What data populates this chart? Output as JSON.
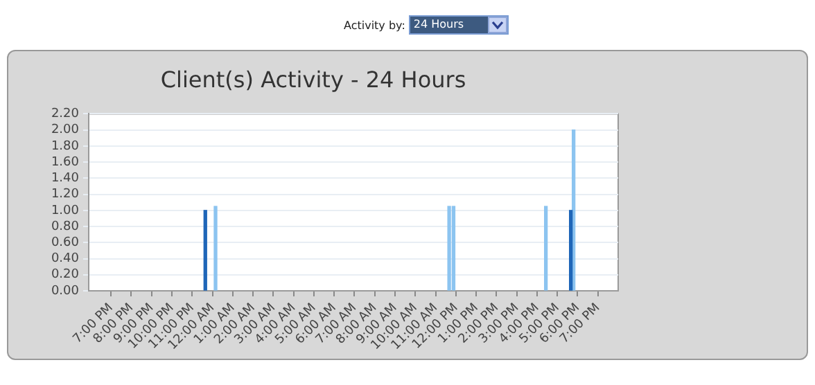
{
  "chart_data": {
    "type": "bar",
    "title": "Client(s) Activity - 24 Hours",
    "annotations": [
      "Activity by:",
      "24 Hours"
    ],
    "grid": "y",
    "legend": false,
    "xlim": [
      "--01-01T17:54",
      "--01-02T20:00"
    ],
    "xticks": [
      {
        "value": "--01-01T19:00",
        "label": "7:00 PM"
      },
      {
        "value": "--01-01T20:00",
        "label": "8:00 PM"
      },
      {
        "value": "--01-01T21:00",
        "label": "9:00 PM"
      },
      {
        "value": "--01-01T22:00",
        "label": "10:00 PM"
      },
      {
        "value": "--01-01T23:00",
        "label": "11:00 PM"
      },
      {
        "value": "--01-02T00:00",
        "label": "12:00 AM"
      },
      {
        "value": "--01-02T01:00",
        "label": "1:00 AM"
      },
      {
        "value": "--01-02T02:00",
        "label": "2:00 AM"
      },
      {
        "value": "--01-02T03:00",
        "label": "3:00 AM"
      },
      {
        "value": "--01-02T04:00",
        "label": "4:00 AM"
      },
      {
        "value": "--01-02T05:00",
        "label": "5:00 AM"
      },
      {
        "value": "--01-02T06:00",
        "label": "6:00 AM"
      },
      {
        "value": "--01-02T07:00",
        "label": "7:00 AM"
      },
      {
        "value": "--01-02T08:00",
        "label": "8:00 AM"
      },
      {
        "value": "--01-02T09:00",
        "label": "9:00 AM"
      },
      {
        "value": "--01-02T10:00",
        "label": "10:00 AM"
      },
      {
        "value": "--01-02T11:00",
        "label": "11:00 AM"
      },
      {
        "value": "--01-02T12:00",
        "label": "12:00 PM"
      },
      {
        "value": "--01-02T13:00",
        "label": "1:00 PM"
      },
      {
        "value": "--01-02T14:00",
        "label": "2:00 PM"
      },
      {
        "value": "--01-02T15:00",
        "label": "3:00 PM"
      },
      {
        "value": "--01-02T16:00",
        "label": "4:00 PM"
      },
      {
        "value": "--01-02T17:00",
        "label": "5:00 PM"
      },
      {
        "value": "--01-02T18:00",
        "label": "6:00 PM"
      },
      {
        "value": "--01-02T19:00",
        "label": "7:00 PM"
      }
    ],
    "ylim": [
      0,
      2.2
    ],
    "yticks": [
      {
        "value": 0,
        "label": "0.00"
      },
      {
        "value": 0.2,
        "label": "0.20"
      },
      {
        "value": 0.4,
        "label": "0.40"
      },
      {
        "value": 0.6,
        "label": "0.60"
      },
      {
        "value": 0.8,
        "label": "0.80"
      },
      {
        "value": 1,
        "label": "1.00"
      },
      {
        "value": 1.2,
        "label": "1.20"
      },
      {
        "value": 1.4,
        "label": "1.40"
      },
      {
        "value": 1.6,
        "label": "1.60"
      },
      {
        "value": 1.8,
        "label": "1.80"
      },
      {
        "value": 2,
        "label": "2.00"
      },
      {
        "value": 2.2,
        "label": "2.20"
      }
    ],
    "series": [
      {
        "color": "#1f66b8",
        "x": [
          "--01-01T23:43",
          "--01-02T17:44"
        ],
        "values": [
          1.0,
          1.0
        ]
      },
      {
        "color": "#8cc4f0",
        "x": [
          "--01-02T00:05",
          "--01-02T11:36",
          "--01-02T11:49",
          "--01-02T16:22",
          "--01-02T17:44"
        ],
        "values": [
          1.05,
          1.05,
          1.05,
          1.05,
          2.0
        ]
      }
    ]
  }
}
